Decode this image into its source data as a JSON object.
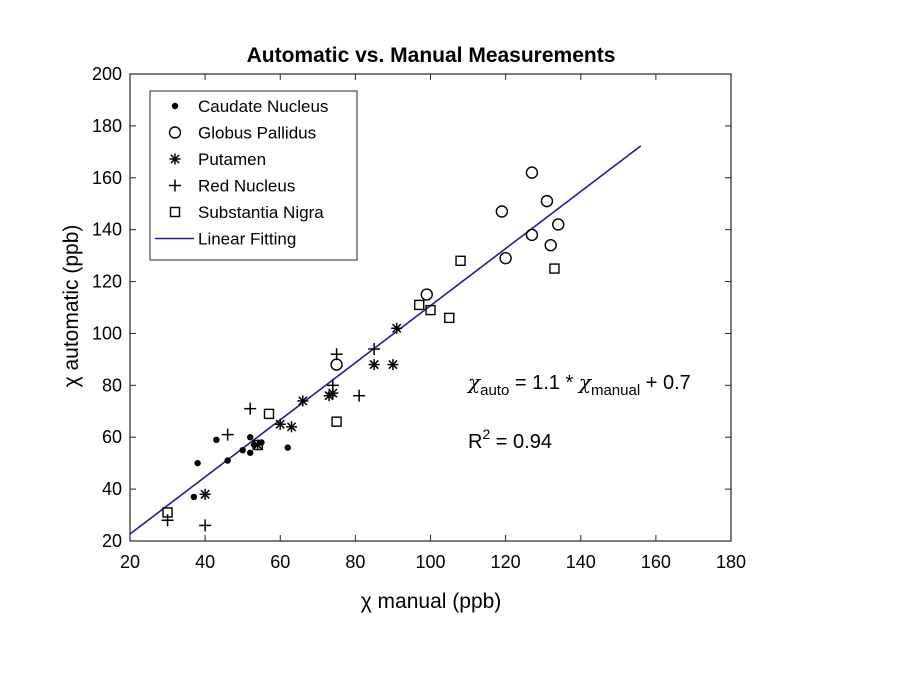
{
  "chart_data": {
    "type": "scatter",
    "title": "Automatic vs. Manual Measurements",
    "xlabel": "χ manual (ppb)",
    "ylabel": "χ automatic (ppb)",
    "xlim": [
      20,
      180
    ],
    "ylim": [
      20,
      200
    ],
    "xticks": [
      20,
      40,
      60,
      80,
      100,
      120,
      140,
      160,
      180
    ],
    "yticks": [
      20,
      40,
      60,
      80,
      100,
      120,
      140,
      160,
      180,
      200
    ],
    "grid": false,
    "legend_position": "top-left",
    "series": [
      {
        "name": "Caudate Nucleus",
        "marker": "dot",
        "color": "#000000",
        "x": [
          37,
          38,
          43,
          46,
          50,
          52,
          52,
          53,
          55,
          62
        ],
        "y": [
          37,
          50,
          59,
          51,
          55,
          60,
          54,
          57,
          58,
          56
        ]
      },
      {
        "name": "Globus Pallidus",
        "marker": "circle",
        "color": "#000000",
        "x": [
          75,
          99,
          119,
          120,
          127,
          127,
          131,
          132,
          134
        ],
        "y": [
          88,
          115,
          147,
          129,
          138,
          162,
          151,
          134,
          142
        ]
      },
      {
        "name": "Putamen",
        "marker": "asterisk",
        "color": "#000000",
        "x": [
          40,
          54,
          60,
          63,
          66,
          73,
          74,
          85,
          90,
          91
        ],
        "y": [
          38,
          57,
          65,
          64,
          74,
          76,
          77,
          88,
          88,
          102
        ]
      },
      {
        "name": "Red Nucleus",
        "marker": "plus",
        "color": "#000000",
        "x": [
          30,
          40,
          46,
          52,
          74,
          75,
          81,
          85
        ],
        "y": [
          28,
          26,
          61,
          71,
          80,
          92,
          76,
          94
        ]
      },
      {
        "name": "Substantia Nigra",
        "marker": "square",
        "color": "#000000",
        "x": [
          30,
          54,
          57,
          75,
          97,
          100,
          105,
          108,
          133
        ],
        "y": [
          31,
          57,
          69,
          66,
          111,
          109,
          106,
          128,
          125
        ]
      }
    ],
    "fit": {
      "name": "Linear Fitting",
      "color": "#1f1f8f",
      "slope": 1.1,
      "intercept": 0.7,
      "x_range": [
        20,
        156
      ]
    },
    "annotations": {
      "equation": {
        "chi_auto": "χ",
        "auto_sub": "auto",
        "equals_part": " = 1.1 * ",
        "chi_manual": "χ",
        "manual_sub": "manual",
        "plus_part": " + 0.7"
      },
      "r2": {
        "prefix": "R",
        "sup": "2",
        "suffix": " = 0.94"
      }
    }
  }
}
